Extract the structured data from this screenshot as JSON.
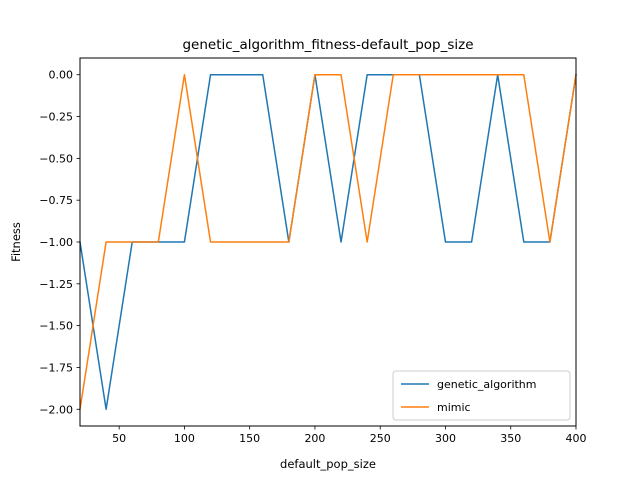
{
  "chart_data": {
    "type": "line",
    "title": "genetic_algorithm_fitness-default_pop_size",
    "xlabel": "default_pop_size",
    "ylabel": "Fitness",
    "xlim": [
      20,
      400
    ],
    "ylim": [
      -2.1,
      0.1
    ],
    "xticks": [
      50,
      100,
      150,
      200,
      250,
      300,
      350,
      400
    ],
    "xtick_labels": [
      "50",
      "100",
      "150",
      "200",
      "250",
      "300",
      "350",
      "400"
    ],
    "yticks": [
      0,
      -0.25,
      -0.5,
      -0.75,
      -1.0,
      -1.25,
      -1.5,
      -1.75,
      -2.0
    ],
    "ytick_labels": [
      "0.00",
      "−0.25",
      "−0.50",
      "−0.75",
      "−1.00",
      "−1.25",
      "−1.50",
      "−1.75",
      "−2.00"
    ],
    "grid": false,
    "legend_position": "lower-right",
    "x": [
      20,
      40,
      60,
      80,
      100,
      120,
      140,
      160,
      180,
      200,
      220,
      240,
      260,
      280,
      300,
      320,
      340,
      360,
      380,
      400
    ],
    "series": [
      {
        "name": "genetic_algorithm",
        "color": "#1f77b4",
        "values": [
          -1,
          -2,
          -1,
          -1,
          -1,
          0,
          0,
          0,
          -1,
          0,
          -1,
          0,
          0,
          0,
          -1,
          -1,
          0,
          -1,
          -1,
          0
        ]
      },
      {
        "name": "mimic",
        "color": "#ff7f0e",
        "values": [
          -2,
          -1,
          -1,
          -1,
          0,
          -1,
          -1,
          -1,
          -1,
          0,
          0,
          -1,
          0,
          0,
          0,
          0,
          0,
          0,
          -1,
          0
        ]
      }
    ]
  }
}
